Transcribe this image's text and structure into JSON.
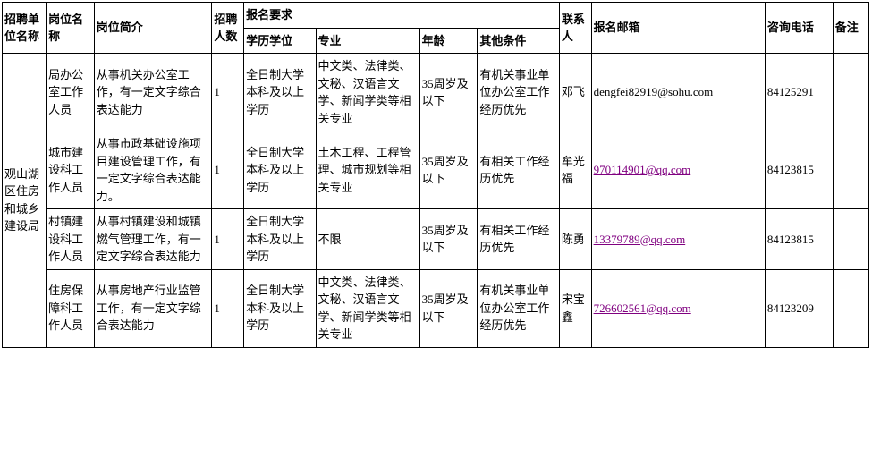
{
  "headers": {
    "unit": "招聘单位名称",
    "position": "岗位名称",
    "description": "岗位简介",
    "count": "招聘人数",
    "requirements": "报名要求",
    "education": "学历学位",
    "major": "专业",
    "age": "年龄",
    "other": "其他条件",
    "contact": "联系人",
    "email": "报名邮箱",
    "phone": "咨询电话",
    "remark": "备注"
  },
  "unit": "观山湖区住房和城乡建设局",
  "rows": [
    {
      "position": "局办公室工作人员",
      "description": "从事机关办公室工作，有一定文字综合表达能力",
      "count": "1",
      "education": "全日制大学本科及以上学历",
      "major": "中文类、法律类、文秘、汉语言文学、新闻学类等相关专业",
      "age": "35周岁及以下",
      "other": "有机关事业单位办公室工作经历优先",
      "contact": "邓飞",
      "email": "dengfei82919@sohu.com",
      "email_style": "plain",
      "phone": "84125291",
      "remark": ""
    },
    {
      "position": "城市建设科工作人员",
      "description": "从事市政基础设施项目建设管理工作，有一定文字综合表达能力。",
      "count": "1",
      "education": "全日制大学本科及以上学历",
      "major": "土木工程、工程管理、城市规划等相关专业",
      "age": "35周岁及以下",
      "other": "有相关工作经历优先",
      "contact": "牟光福",
      "email": "970114901@qq.com",
      "email_style": "link",
      "phone": "84123815",
      "remark": ""
    },
    {
      "position": "村镇建设科工作人员",
      "description": "从事村镇建设和城镇燃气管理工作，有一定文字综合表达能力",
      "count": "1",
      "education": "全日制大学本科及以上学历",
      "major": "不限",
      "age": "35周岁及以下",
      "other": "有相关工作经历优先",
      "contact": "陈勇",
      "email": "13379789@qq.com",
      "email_style": "link",
      "phone": "84123815",
      "remark": ""
    },
    {
      "position": "住房保障科工作人员",
      "description": "从事房地产行业监管工作，有一定文字综合表达能力",
      "count": "1",
      "education": "全日制大学本科及以上学历",
      "major": "中文类、法律类、文秘、汉语言文学、新闻学类等相关专业",
      "age": "35周岁及以下",
      "other": "有机关事业单位办公室工作经历优先",
      "contact": "宋宝鑫",
      "email": "726602561@qq.com",
      "email_style": "link",
      "phone": "84123209",
      "remark": ""
    }
  ]
}
